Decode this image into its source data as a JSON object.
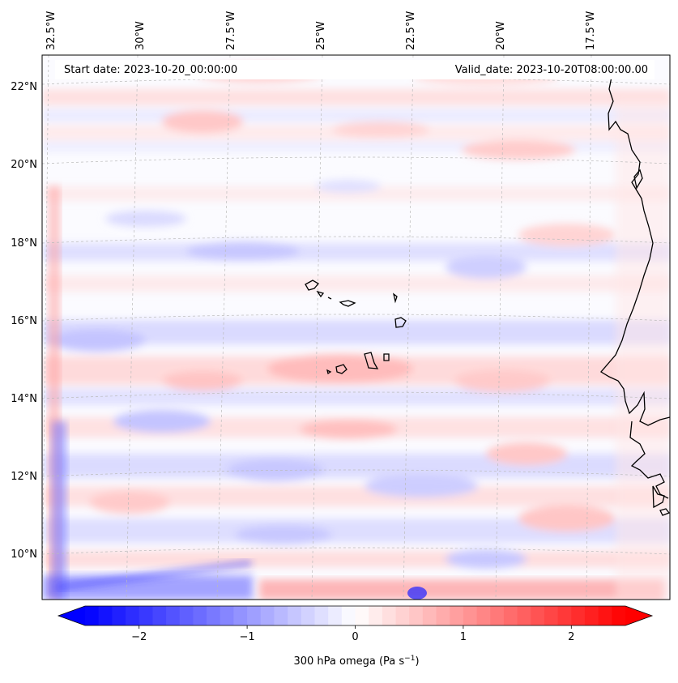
{
  "map": {
    "start_date_label": "Start date: 2023-10-20_00:00:00",
    "valid_date_label": "Valid_date: 2023-10-20T08:00:00.00",
    "lon_labels": [
      "32.5°W",
      "30°W",
      "27.5°W",
      "25°W",
      "22.5°W",
      "20°W",
      "17.5°W"
    ],
    "lat_labels": [
      "22°N",
      "20°N",
      "18°N",
      "16°N",
      "14°N",
      "12°N",
      "10°N"
    ],
    "coastline_color": "#000000",
    "gridline_color": "#bbbbbb"
  },
  "colorbar": {
    "label_main": "300 hPa omega (Pa s",
    "label_sup": "−1",
    "label_close": ")",
    "ticks": [
      {
        "value": -2,
        "label": "−2"
      },
      {
        "value": -1,
        "label": "−1"
      },
      {
        "value": 0,
        "label": "0"
      },
      {
        "value": 1,
        "label": "1"
      },
      {
        "value": 2,
        "label": "2"
      }
    ],
    "vmin": -2.5,
    "vmax": 2.5,
    "colors": {
      "low": "#0000ff",
      "mid": "#ffffff",
      "high": "#ff0000"
    }
  }
}
